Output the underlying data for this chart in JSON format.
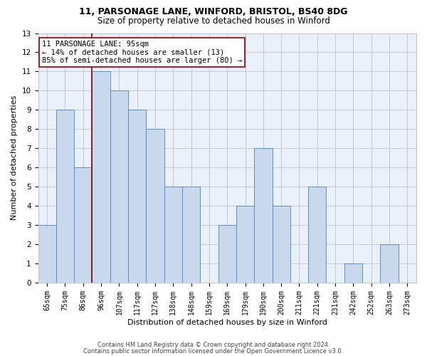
{
  "title1": "11, PARSONAGE LANE, WINFORD, BRISTOL, BS40 8DG",
  "title2": "Size of property relative to detached houses in Winford",
  "xlabel": "Distribution of detached houses by size in Winford",
  "ylabel": "Number of detached properties",
  "categories": [
    "65sqm",
    "75sqm",
    "86sqm",
    "96sqm",
    "107sqm",
    "117sqm",
    "127sqm",
    "138sqm",
    "148sqm",
    "159sqm",
    "169sqm",
    "179sqm",
    "190sqm",
    "200sqm",
    "211sqm",
    "221sqm",
    "231sqm",
    "242sqm",
    "252sqm",
    "263sqm",
    "273sqm"
  ],
  "values": [
    3,
    9,
    6,
    11,
    10,
    9,
    8,
    5,
    5,
    0,
    3,
    4,
    7,
    4,
    0,
    5,
    0,
    1,
    0,
    2,
    0
  ],
  "bar_color": "#c9d9ed",
  "bar_edge_color": "#5b8ec4",
  "subject_line_color": "#8b0000",
  "subject_line_xindex": 2.5,
  "annotation_text": "11 PARSONAGE LANE: 95sqm\n← 14% of detached houses are smaller (13)\n85% of semi-detached houses are larger (80) →",
  "annotation_box_color": "#ffffff",
  "annotation_box_edge": "#8b0000",
  "ylim": [
    0,
    13
  ],
  "yticks": [
    0,
    1,
    2,
    3,
    4,
    5,
    6,
    7,
    8,
    9,
    10,
    11,
    12,
    13
  ],
  "footer1": "Contains HM Land Registry data © Crown copyright and database right 2024.",
  "footer2": "Contains public sector information licensed under the Open Government Licence v3.0.",
  "grid_color": "#c0c8d8",
  "bg_color": "#eaf0f8",
  "title1_fontsize": 9,
  "title2_fontsize": 8.5,
  "xlabel_fontsize": 8,
  "ylabel_fontsize": 8,
  "tick_fontsize": 7,
  "annotation_fontsize": 7.5,
  "footer_fontsize": 6
}
